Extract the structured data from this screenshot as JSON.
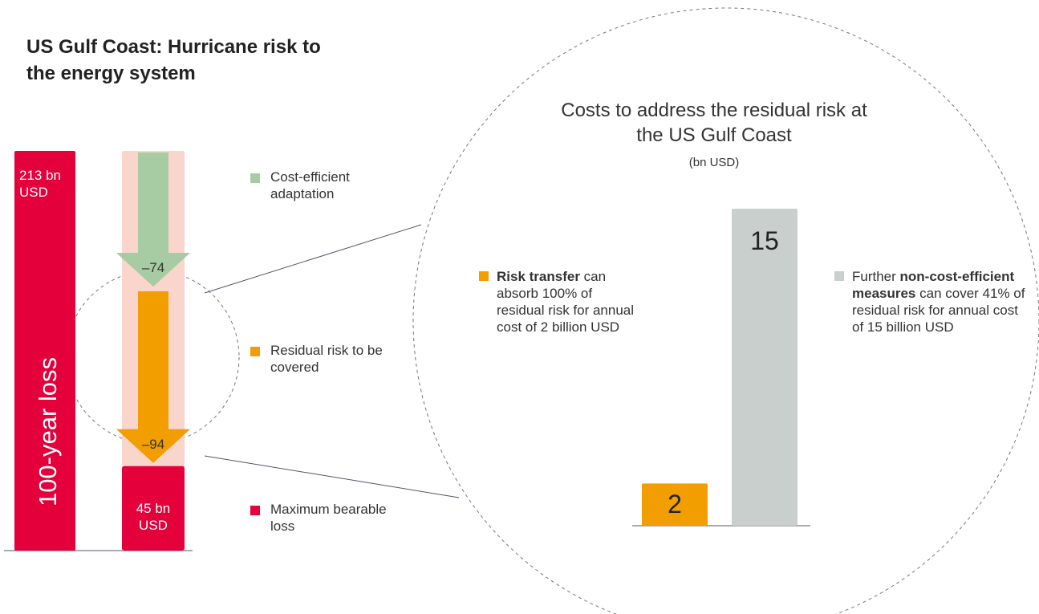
{
  "title": "US Gulf Coast: Hurricane risk to the energy system",
  "chart_data": [
    {
      "type": "waterfall",
      "y_label": "100-year loss",
      "start": {
        "value": 213,
        "label": "213 bn USD",
        "color": "#e3003b"
      },
      "series": [
        {
          "name": "Cost-efficient adaptation",
          "color": "#a7cba3",
          "values": [
            -74
          ],
          "value_labels": [
            "–74"
          ]
        },
        {
          "name": "Residual risk to be covered",
          "color": "#f29d00",
          "values": [
            -94
          ],
          "value_labels": [
            "–94"
          ]
        },
        {
          "name": "Maximum bearable loss",
          "color": "#e3003b",
          "values": [
            45
          ],
          "value_labels": [
            "45 bn USD"
          ]
        }
      ]
    },
    {
      "type": "bar",
      "title": "Costs to address the residual risk at the US Gulf Coast",
      "subtitle": "(bn USD)",
      "values": [
        2,
        15
      ],
      "colors": [
        "#f29d00",
        "#c8cfcc"
      ],
      "annotations": [
        {
          "parts": [
            {
              "text": "Risk transfer",
              "bold": true
            },
            {
              "text": "can absorb 100% of residual risk for annual cost of 2 billion USD"
            }
          ]
        },
        {
          "parts": [
            {
              "text": "Further"
            },
            {
              "text": "non-cost-efficient measures",
              "bold": true
            },
            {
              "text": "can cover 41% of residual risk for annual cost of 15 billion USD"
            }
          ]
        }
      ]
    }
  ]
}
